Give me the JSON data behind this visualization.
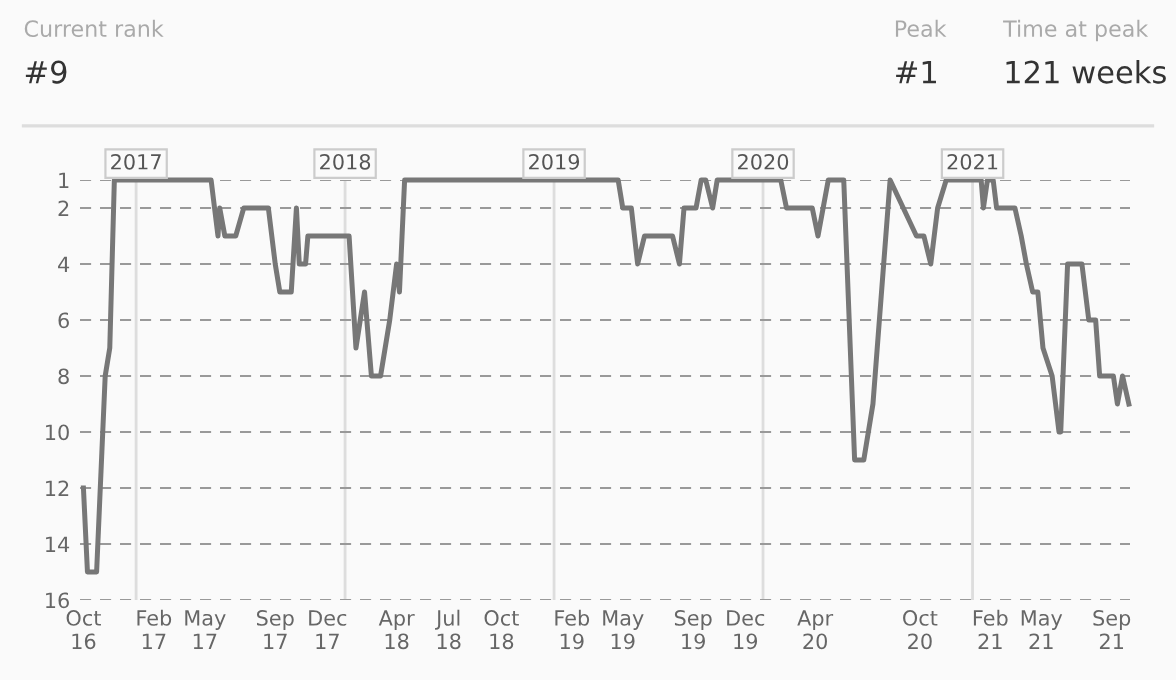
{
  "chart_data": {
    "type": "line",
    "annotations": [
      "Current rank",
      "#9",
      "Peak",
      "#1",
      "Time at peak",
      "121 weeks"
    ],
    "series": [
      {
        "color": "#777777",
        "x": [
          "2016-10-01",
          "2016-10-08",
          "2016-10-24",
          "2016-11-08",
          "2016-11-16",
          "2016-11-24",
          "2017-05-12",
          "2017-05-24",
          "2017-05-27",
          "2017-06-05",
          "2017-06-24",
          "2017-07-08",
          "2017-08-20",
          "2017-09-01",
          "2017-09-09",
          "2017-09-29",
          "2017-10-08",
          "2017-10-13",
          "2017-10-24",
          "2017-10-28",
          "2018-01-08",
          "2018-01-20",
          "2018-02-04",
          "2018-02-16",
          "2018-03-04",
          "2018-03-20",
          "2018-04-01",
          "2018-04-06",
          "2018-04-15",
          "2019-04-23",
          "2019-05-01",
          "2019-05-16",
          "2019-05-27",
          "2019-06-08",
          "2019-07-27",
          "2019-08-08",
          "2019-08-16",
          "2019-09-06",
          "2019-09-15",
          "2019-09-23",
          "2019-10-05",
          "2019-10-13",
          "2020-02-01",
          "2020-02-11",
          "2020-03-27",
          "2020-04-06",
          "2020-04-24",
          "2020-05-21",
          "2020-06-09",
          "2020-06-25",
          "2020-07-11",
          "2020-08-10",
          "2020-09-02",
          "2020-09-25",
          "2020-10-08",
          "2020-10-20",
          "2020-11-01",
          "2020-11-16",
          "2021-01-16",
          "2021-01-20",
          "2021-01-27",
          "2021-02-06",
          "2021-02-12",
          "2021-03-16",
          "2021-03-27",
          "2021-04-05",
          "2021-04-16",
          "2021-04-25",
          "2021-05-04",
          "2021-05-20",
          "2021-06-01",
          "2021-06-04",
          "2021-06-16",
          "2021-07-11",
          "2021-07-23",
          "2021-08-04",
          "2021-08-11",
          "2021-09-04",
          "2021-09-11",
          "2021-09-20",
          "2021-10-01"
        ],
        "values": [
          12,
          15,
          15,
          8,
          7,
          1,
          1,
          3,
          2,
          3,
          3,
          2,
          2,
          4,
          5,
          5,
          2,
          4,
          4,
          3,
          3,
          7,
          5,
          8,
          8,
          6,
          4,
          5,
          1,
          1,
          2,
          2,
          4,
          3,
          3,
          4,
          2,
          2,
          1,
          1,
          2,
          1,
          1,
          2,
          2,
          3,
          1,
          1,
          11,
          11,
          9,
          1,
          2,
          3,
          3,
          4,
          2,
          1,
          1,
          2,
          1,
          1,
          2,
          2,
          3,
          4,
          5,
          5,
          7,
          8,
          10,
          10,
          4,
          4,
          6,
          6,
          8,
          8,
          9,
          8,
          9
        ]
      }
    ],
    "xlim": [
      "2016-09-25",
      "2021-10-03"
    ],
    "xticks": [
      {
        "value": "2016-10-01",
        "label": "Oct\n16"
      },
      {
        "value": "2017-02-01",
        "label": "Feb\n17"
      },
      {
        "value": "2017-05-01",
        "label": "May\n17"
      },
      {
        "value": "2017-09-01",
        "label": "Sep\n17"
      },
      {
        "value": "2017-12-01",
        "label": "Dec\n17"
      },
      {
        "value": "2018-04-01",
        "label": "Apr\n18"
      },
      {
        "value": "2018-07-01",
        "label": "Jul\n18"
      },
      {
        "value": "2018-10-01",
        "label": "Oct\n18"
      },
      {
        "value": "2019-02-01",
        "label": "Feb\n19"
      },
      {
        "value": "2019-05-01",
        "label": "May\n19"
      },
      {
        "value": "2019-09-01",
        "label": "Sep\n19"
      },
      {
        "value": "2019-12-01",
        "label": "Dec\n19"
      },
      {
        "value": "2020-04-01",
        "label": "Apr\n20"
      },
      {
        "value": "2020-10-01",
        "label": "Oct\n20"
      },
      {
        "value": "2021-02-01",
        "label": "Feb\n21"
      },
      {
        "value": "2021-05-01",
        "label": "May\n21"
      },
      {
        "value": "2021-09-01",
        "label": "Sep\n21"
      }
    ],
    "ylim": [
      16,
      1
    ],
    "yticks": [
      1,
      2,
      4,
      6,
      8,
      10,
      12,
      14,
      16
    ],
    "grid": "y",
    "line_style": "solid",
    "marker": "none",
    "ref_lines": [
      {
        "axis": "x",
        "value": "2017-01-01",
        "label": "2017",
        "color": "#dddddd"
      },
      {
        "axis": "x",
        "value": "2018-01-01",
        "label": "2018",
        "color": "#dddddd"
      },
      {
        "axis": "x",
        "value": "2019-01-01",
        "label": "2019",
        "color": "#dddddd"
      },
      {
        "axis": "x",
        "value": "2020-01-01",
        "label": "2020",
        "color": "#dddddd"
      },
      {
        "axis": "x",
        "value": "2021-01-01",
        "label": "2021",
        "color": "#dddddd"
      }
    ]
  }
}
